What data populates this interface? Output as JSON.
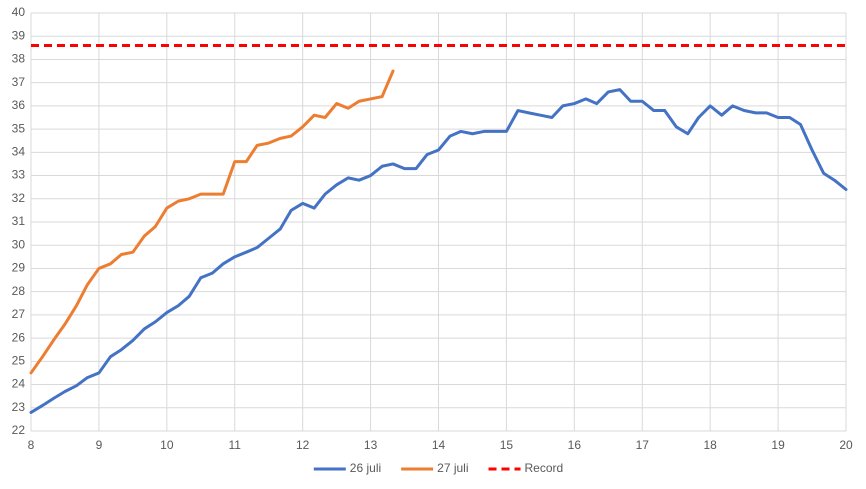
{
  "chart_data": {
    "type": "line",
    "x": [
      8,
      8.17,
      8.33,
      8.5,
      8.67,
      8.83,
      9,
      9.17,
      9.33,
      9.5,
      9.67,
      9.83,
      10,
      10.17,
      10.33,
      10.5,
      10.67,
      10.83,
      11,
      11.17,
      11.33,
      11.5,
      11.67,
      11.83,
      12,
      12.17,
      12.33,
      12.5,
      12.67,
      12.83,
      13,
      13.17,
      13.33,
      13.5,
      13.67,
      13.83,
      14,
      14.17,
      14.33,
      14.5,
      14.67,
      14.83,
      15,
      15.17,
      15.33,
      15.5,
      15.67,
      15.83,
      16,
      16.17,
      16.33,
      16.5,
      16.67,
      16.83,
      17,
      17.17,
      17.33,
      17.5,
      17.67,
      17.83,
      18,
      18.17,
      18.33,
      18.5,
      18.67,
      18.83,
      19,
      19.17,
      19.33,
      19.5,
      19.67,
      19.83,
      20
    ],
    "series": [
      {
        "name": "26 juli",
        "color": "#4472c4",
        "values": [
          22.8,
          23.1,
          23.4,
          23.7,
          23.95,
          24.3,
          24.5,
          25.2,
          25.5,
          25.9,
          26.4,
          26.7,
          27.1,
          27.4,
          27.8,
          28.6,
          28.8,
          29.2,
          29.5,
          29.7,
          29.9,
          30.3,
          30.7,
          31.5,
          31.8,
          31.6,
          32.2,
          32.6,
          32.9,
          32.8,
          33.0,
          33.4,
          33.5,
          33.3,
          33.3,
          33.9,
          34.1,
          34.7,
          34.9,
          34.8,
          34.9,
          34.9,
          34.9,
          35.8,
          35.7,
          35.6,
          35.5,
          36.0,
          36.1,
          36.3,
          36.1,
          36.6,
          36.7,
          36.2,
          36.2,
          35.8,
          35.8,
          35.1,
          34.8,
          35.5,
          36.0,
          35.6,
          36.0,
          35.8,
          35.7,
          35.7,
          35.5,
          35.5,
          35.2,
          34.1,
          33.1,
          32.8,
          32.4
        ]
      },
      {
        "name": "27 juli",
        "color": "#ed7d31",
        "values": [
          24.5,
          25.2,
          25.9,
          26.6,
          27.4,
          28.3,
          29.0,
          29.2,
          29.6,
          29.7,
          30.4,
          30.8,
          31.6,
          31.9,
          32.0,
          32.2,
          32.2,
          32.2,
          33.6,
          33.6,
          34.3,
          34.4,
          34.6,
          34.7,
          35.1,
          35.6,
          35.5,
          36.1,
          35.9,
          36.2,
          36.3,
          36.4,
          37.5,
          null,
          null,
          null,
          null,
          null,
          null,
          null,
          null,
          null,
          null,
          null,
          null,
          null,
          null,
          null,
          null,
          null,
          null,
          null,
          null,
          null,
          null,
          null,
          null,
          null,
          null,
          null,
          null,
          null,
          null,
          null,
          null,
          null,
          null,
          null,
          null,
          null,
          null,
          null,
          null
        ]
      },
      {
        "name": "Record",
        "color": "#ff0000",
        "dashed": true,
        "x": [
          8,
          20
        ],
        "values": [
          38.6,
          38.6
        ]
      }
    ],
    "xlim": [
      8,
      20
    ],
    "xticks": [
      8,
      9,
      10,
      11,
      12,
      13,
      14,
      15,
      16,
      17,
      18,
      19,
      20
    ],
    "ylim": [
      22,
      40
    ],
    "yticks": [
      22,
      23,
      24,
      25,
      26,
      27,
      28,
      29,
      30,
      31,
      32,
      33,
      34,
      35,
      36,
      37,
      38,
      39,
      40
    ],
    "grid": true,
    "legend": "bottom"
  }
}
